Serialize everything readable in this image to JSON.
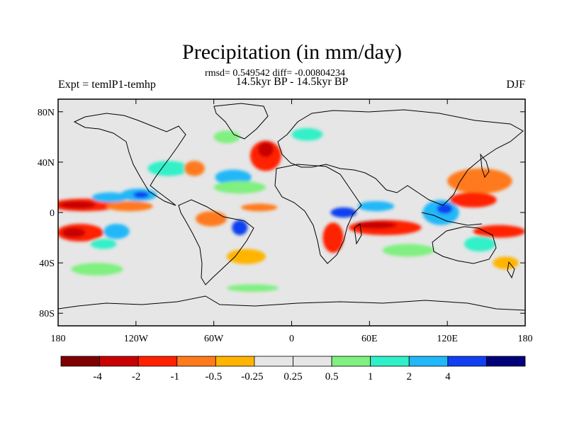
{
  "chart_data": {
    "type": "heatmap",
    "title": "Precipitation (in mm/day)",
    "stats_line": "rmsd= 0.549542 diff= -0.00804234",
    "subtitle": "14.5kyr BP - 14.5kyr BP",
    "left_label": "Expt = temlP1-temhp",
    "right_label": "DJF",
    "x_range": [
      -180,
      180
    ],
    "y_range": [
      -90,
      90
    ],
    "x_ticks": [
      {
        "value": -180,
        "label": "180"
      },
      {
        "value": -120,
        "label": "120W"
      },
      {
        "value": -60,
        "label": "60W"
      },
      {
        "value": 0,
        "label": "0"
      },
      {
        "value": 60,
        "label": "60E"
      },
      {
        "value": 120,
        "label": "120E"
      },
      {
        "value": 180,
        "label": "180"
      }
    ],
    "y_ticks": [
      {
        "value": 80,
        "label": "80N"
      },
      {
        "value": 40,
        "label": "40N"
      },
      {
        "value": 0,
        "label": "0"
      },
      {
        "value": -40,
        "label": "40S"
      },
      {
        "value": -80,
        "label": "80S"
      }
    ],
    "colorbar": {
      "colors": [
        "#7f0000",
        "#c80000",
        "#ff2000",
        "#ff7a1a",
        "#ffb400",
        "#e6e6e6",
        "#e6e6e6",
        "#80f080",
        "#30f0c8",
        "#20b8f8",
        "#1040f0",
        "#00007a"
      ],
      "labels": [
        "-4",
        "-2",
        "-1",
        "-0.5",
        "-0.25",
        "0.25",
        "0.5",
        "1",
        "2",
        "4"
      ]
    },
    "anomaly_regions": [
      {
        "name": "w-pacific-dry-band",
        "lon": -160,
        "lat": 6,
        "rlon": 26,
        "rlat": 5,
        "color": "#ff2000"
      },
      {
        "name": "w-pacific-dry-core",
        "lon": -165,
        "lat": 6,
        "rlon": 14,
        "rlat": 3,
        "color": "#c80000"
      },
      {
        "name": "c-pacific-dry-band",
        "lon": -125,
        "lat": 5,
        "rlon": 18,
        "rlat": 4,
        "color": "#ff7a1a"
      },
      {
        "name": "s-pacific-dry",
        "lon": -163,
        "lat": -16,
        "rlon": 18,
        "rlat": 7,
        "color": "#ff2000"
      },
      {
        "name": "s-pacific-dry-core",
        "lon": -168,
        "lat": -16,
        "rlon": 9,
        "rlat": 4,
        "color": "#c80000"
      },
      {
        "name": "n-pacific-wet",
        "lon": -140,
        "lat": 12,
        "rlon": 14,
        "rlat": 4,
        "color": "#20b8f8"
      },
      {
        "name": "e-pacific-wet",
        "lon": -118,
        "lat": 14,
        "rlon": 14,
        "rlat": 5,
        "color": "#20b8f8"
      },
      {
        "name": "e-pacific-wet-core",
        "lon": -116,
        "lat": 14,
        "rlon": 6,
        "rlat": 2.5,
        "color": "#1040f0"
      },
      {
        "name": "s-pacific-wet",
        "lon": -135,
        "lat": -15,
        "rlon": 10,
        "rlat": 6,
        "color": "#20b8f8"
      },
      {
        "name": "s-pacific-wet2",
        "lon": -145,
        "lat": -25,
        "rlon": 10,
        "rlat": 4,
        "color": "#30f0c8"
      },
      {
        "name": "s-pacific-green",
        "lon": -150,
        "lat": -45,
        "rlon": 20,
        "rlat": 5,
        "color": "#80f080"
      },
      {
        "name": "n-america-wet",
        "lon": -95,
        "lat": 35,
        "rlon": 16,
        "rlat": 6,
        "color": "#30f0c8"
      },
      {
        "name": "n-america-dry",
        "lon": -75,
        "lat": 35,
        "rlon": 8,
        "rlat": 6,
        "color": "#ff7a1a"
      },
      {
        "name": "n-atlantic-wet",
        "lon": -45,
        "lat": 28,
        "rlon": 14,
        "rlat": 6,
        "color": "#20b8f8"
      },
      {
        "name": "n-atlantic-green",
        "lon": -40,
        "lat": 20,
        "rlon": 20,
        "rlat": 5,
        "color": "#80f080"
      },
      {
        "name": "n-atlantic-dry",
        "lon": -20,
        "lat": 45,
        "rlon": 12,
        "rlat": 12,
        "color": "#ff2000"
      },
      {
        "name": "n-atlantic-dry-core",
        "lon": -20,
        "lat": 50,
        "rlon": 6,
        "rlat": 6,
        "color": "#c80000"
      },
      {
        "name": "greenland-wet",
        "lon": -50,
        "lat": 60,
        "rlon": 10,
        "rlat": 5,
        "color": "#80f080"
      },
      {
        "name": "norway-wet",
        "lon": 12,
        "lat": 62,
        "rlon": 12,
        "rlat": 5,
        "color": "#30f0c8"
      },
      {
        "name": "amazon-dry",
        "lon": -62,
        "lat": -5,
        "rlon": 12,
        "rlat": 6,
        "color": "#ff7a1a"
      },
      {
        "name": "brazil-wet",
        "lon": -40,
        "lat": -12,
        "rlon": 6,
        "rlat": 6,
        "color": "#1040f0"
      },
      {
        "name": "s-atlantic-dry",
        "lon": -35,
        "lat": -35,
        "rlon": 15,
        "rlat": 6,
        "color": "#ffb400"
      },
      {
        "name": "trop-atlantic-dry",
        "lon": -25,
        "lat": 4,
        "rlon": 14,
        "rlat": 3,
        "color": "#ff7a1a"
      },
      {
        "name": "e-africa-wet",
        "lon": 40,
        "lat": 0,
        "rlon": 10,
        "rlat": 4,
        "color": "#1040f0"
      },
      {
        "name": "s-africa-dry",
        "lon": 32,
        "lat": -20,
        "rlon": 8,
        "rlat": 12,
        "color": "#ff2000"
      },
      {
        "name": "indian-ocean-dry",
        "lon": 72,
        "lat": -12,
        "rlon": 28,
        "rlat": 6,
        "color": "#ff2000"
      },
      {
        "name": "indian-ocean-dry-core",
        "lon": 65,
        "lat": -10,
        "rlon": 16,
        "rlat": 3,
        "color": "#c80000"
      },
      {
        "name": "arabian-sea-wet",
        "lon": 65,
        "lat": 5,
        "rlon": 14,
        "rlat": 4,
        "color": "#20b8f8"
      },
      {
        "name": "maritime-wet",
        "lon": 115,
        "lat": 0,
        "rlon": 14,
        "rlat": 10,
        "color": "#20b8f8"
      },
      {
        "name": "maritime-wet-core",
        "lon": 118,
        "lat": 3,
        "rlon": 6,
        "rlat": 4,
        "color": "#1040f0"
      },
      {
        "name": "w-pacific-n-dry",
        "lon": 145,
        "lat": 25,
        "rlon": 25,
        "rlat": 10,
        "color": "#ff7a1a"
      },
      {
        "name": "w-pacific-n-dry2",
        "lon": 140,
        "lat": 10,
        "rlon": 18,
        "rlat": 6,
        "color": "#ff2000"
      },
      {
        "name": "spcz-dry",
        "lon": 160,
        "lat": -15,
        "rlon": 20,
        "rlat": 5,
        "color": "#ff2000"
      },
      {
        "name": "australia-wet",
        "lon": 145,
        "lat": -25,
        "rlon": 12,
        "rlat": 6,
        "color": "#30f0c8"
      },
      {
        "name": "s-indian-green",
        "lon": 90,
        "lat": -30,
        "rlon": 20,
        "rlat": 5,
        "color": "#80f080"
      },
      {
        "name": "tasman-dry",
        "lon": 165,
        "lat": -40,
        "rlon": 10,
        "rlat": 5,
        "color": "#ffb400"
      },
      {
        "name": "antarctic-green",
        "lon": -30,
        "lat": -60,
        "rlon": 20,
        "rlat": 3,
        "color": "#80f080"
      }
    ]
  }
}
